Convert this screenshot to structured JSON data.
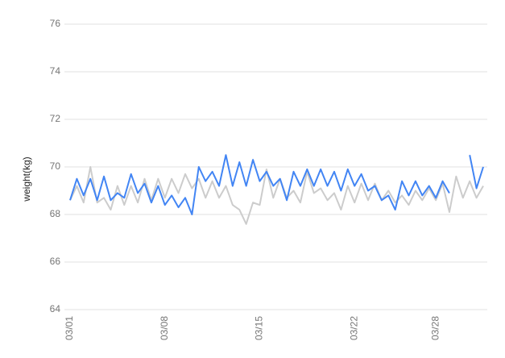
{
  "chart_data": {
    "type": "line",
    "y_label": "weight(kg)",
    "categories": [
      "03/01",
      null,
      null,
      null,
      null,
      null,
      null,
      null,
      null,
      null,
      null,
      null,
      null,
      null,
      "03/08",
      null,
      null,
      null,
      null,
      null,
      null,
      null,
      null,
      null,
      null,
      null,
      null,
      null,
      "03/15",
      null,
      null,
      null,
      null,
      null,
      null,
      null,
      null,
      null,
      null,
      null,
      null,
      null,
      "03/22",
      null,
      null,
      null,
      null,
      null,
      null,
      null,
      null,
      null,
      null,
      null,
      "03/28",
      null,
      null,
      null,
      null,
      null,
      null,
      null
    ],
    "series": [
      {
        "color": "#4285f4",
        "values": [
          68.6,
          69.5,
          68.8,
          69.5,
          68.6,
          69.6,
          68.6,
          68.9,
          68.7,
          69.7,
          68.9,
          69.3,
          68.5,
          69.2,
          68.4,
          68.8,
          68.3,
          68.7,
          68.0,
          70.0,
          69.4,
          69.8,
          69.2,
          70.5,
          69.2,
          70.2,
          69.2,
          70.3,
          69.4,
          69.8,
          69.2,
          69.5,
          68.6,
          69.8,
          69.2,
          69.9,
          69.2,
          69.9,
          69.2,
          69.8,
          69.0,
          69.9,
          69.2,
          69.7,
          69.0,
          69.2,
          68.6,
          68.8,
          68.2,
          69.4,
          68.8,
          69.4,
          68.8,
          69.2,
          68.7,
          69.4,
          68.9,
          null,
          null,
          70.5,
          69.1,
          70.0
        ]
      },
      {
        "color": "#cccccc",
        "values": [
          68.6,
          69.2,
          68.5,
          70.0,
          68.5,
          68.7,
          68.2,
          69.2,
          68.4,
          69.2,
          68.5,
          69.5,
          68.6,
          69.5,
          68.7,
          69.5,
          68.9,
          69.7,
          69.1,
          69.5,
          68.7,
          69.4,
          68.7,
          69.2,
          68.4,
          68.2,
          67.6,
          68.5,
          68.4,
          69.9,
          68.7,
          69.5,
          68.7,
          69.0,
          68.5,
          69.8,
          68.9,
          69.1,
          68.6,
          68.9,
          68.2,
          69.2,
          68.5,
          69.3,
          68.6,
          69.3,
          68.6,
          69.0,
          68.5,
          68.8,
          68.4,
          69.0,
          68.6,
          69.1,
          68.6,
          69.3,
          68.1,
          69.6,
          68.7,
          69.4,
          68.7,
          69.2
        ]
      }
    ],
    "ylim": [
      64,
      76
    ],
    "yticks": [
      64,
      66,
      68,
      70,
      72,
      74,
      76
    ],
    "grid": true
  }
}
